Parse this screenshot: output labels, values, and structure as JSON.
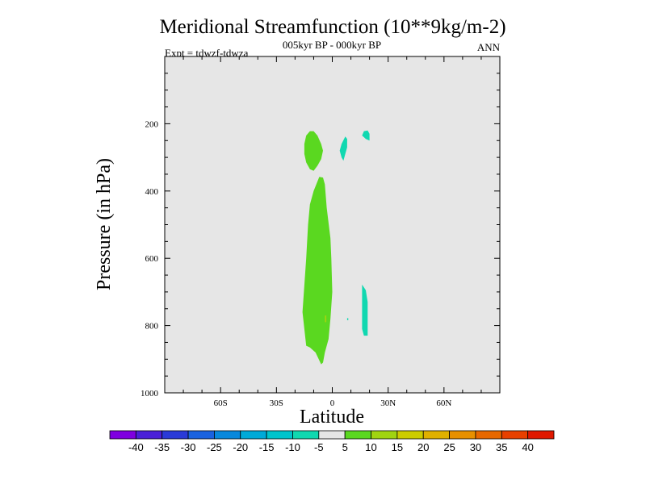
{
  "chart_data": {
    "type": "contour",
    "title": "Meridional Streamfunction (10**9kg/m-2)",
    "subtitle": "005kyr BP - 000kyr BP",
    "left_label": "Expt = tdwzf-tdwza",
    "right_label": "ANN",
    "xlabel": "Latitude",
    "ylabel": "Pressure (in hPa)",
    "xlim": [
      -90,
      90
    ],
    "ylim": [
      1000,
      0
    ],
    "x_ticks": [
      {
        "value": -60,
        "label": "60S"
      },
      {
        "value": -30,
        "label": "30S"
      },
      {
        "value": 0,
        "label": "0"
      },
      {
        "value": 30,
        "label": "30N"
      },
      {
        "value": 60,
        "label": "60N"
      }
    ],
    "y_ticks": [
      {
        "value": 200,
        "label": "200"
      },
      {
        "value": 400,
        "label": "400"
      },
      {
        "value": 600,
        "label": "600"
      },
      {
        "value": 800,
        "label": "800"
      },
      {
        "value": 1000,
        "label": "1000"
      }
    ],
    "background_color": "#e6e6e6",
    "colorbar": {
      "levels": [
        -40,
        -35,
        -30,
        -25,
        -20,
        -15,
        -10,
        -5,
        5,
        10,
        15,
        20,
        25,
        30,
        35,
        40
      ],
      "labels": [
        "-40",
        "-35",
        "-30",
        "-25",
        "-20",
        "-15",
        "-10",
        "-5",
        "5",
        "10",
        "15",
        "20",
        "25",
        "30",
        "35",
        "40"
      ],
      "colors": [
        "#7f00e0",
        "#4a20d8",
        "#2a3ad8",
        "#1a62e0",
        "#0888dc",
        "#00aad8",
        "#00c4cc",
        "#10d8b0",
        "#e6e6e6",
        "#5ad820",
        "#a0d410",
        "#cccc00",
        "#e0b000",
        "#e89000",
        "#e86800",
        "#e84000",
        "#e01800"
      ]
    },
    "regions": [
      {
        "name": "positive-upper-cell",
        "color": "#5ad820",
        "points": [
          [
            -12,
            222
          ],
          [
            -10,
            222
          ],
          [
            -8,
            235
          ],
          [
            -6,
            260
          ],
          [
            -5,
            280
          ],
          [
            -6,
            305
          ],
          [
            -8,
            325
          ],
          [
            -10,
            340
          ],
          [
            -12,
            335
          ],
          [
            -14,
            315
          ],
          [
            -15,
            290
          ],
          [
            -15,
            260
          ],
          [
            -14,
            235
          ]
        ]
      },
      {
        "name": "positive-main-cell",
        "color": "#5ad820",
        "points": [
          [
            -7,
            358
          ],
          [
            -5,
            360
          ],
          [
            -4,
            380
          ],
          [
            -3,
            450
          ],
          [
            -1,
            540
          ],
          [
            -0.5,
            600
          ],
          [
            0,
            700
          ],
          [
            -1,
            780
          ],
          [
            -2,
            840
          ],
          [
            -4,
            880
          ],
          [
            -5,
            910
          ],
          [
            -6,
            915
          ],
          [
            -9,
            880
          ],
          [
            -12,
            865
          ],
          [
            -14,
            860
          ],
          [
            -15,
            810
          ],
          [
            -16,
            760
          ],
          [
            -15,
            680
          ],
          [
            -14,
            600
          ],
          [
            -13,
            500
          ],
          [
            -12,
            440
          ],
          [
            -10,
            400
          ]
        ]
      },
      {
        "name": "negative-cell-a",
        "color": "#10d8b0",
        "points": [
          [
            7,
            238
          ],
          [
            8,
            245
          ],
          [
            8,
            270
          ],
          [
            7,
            290
          ],
          [
            6,
            310
          ],
          [
            5,
            300
          ],
          [
            4,
            280
          ],
          [
            5,
            260
          ]
        ]
      },
      {
        "name": "negative-cell-b",
        "color": "#10d8b0",
        "points": [
          [
            17,
            222
          ],
          [
            19,
            220
          ],
          [
            20,
            230
          ],
          [
            20,
            250
          ],
          [
            18,
            245
          ],
          [
            16,
            235
          ]
        ]
      },
      {
        "name": "negative-cell-c",
        "color": "#10d8b0",
        "points": [
          [
            16,
            678
          ],
          [
            18,
            695
          ],
          [
            19,
            730
          ],
          [
            19,
            790
          ],
          [
            19,
            830
          ],
          [
            17,
            830
          ],
          [
            16,
            810
          ],
          [
            16,
            760
          ],
          [
            16,
            720
          ]
        ]
      },
      {
        "name": "negative-cell-d",
        "color": "#10d8b0",
        "points": [
          [
            8,
            778
          ],
          [
            8.6,
            778
          ],
          [
            8.6,
            784
          ],
          [
            8,
            784
          ]
        ]
      },
      {
        "name": "positive-spot",
        "color": "#a0d410",
        "points": [
          [
            -4,
            770
          ],
          [
            -3.2,
            770
          ],
          [
            -3.2,
            790
          ],
          [
            -4,
            790
          ]
        ]
      }
    ]
  }
}
